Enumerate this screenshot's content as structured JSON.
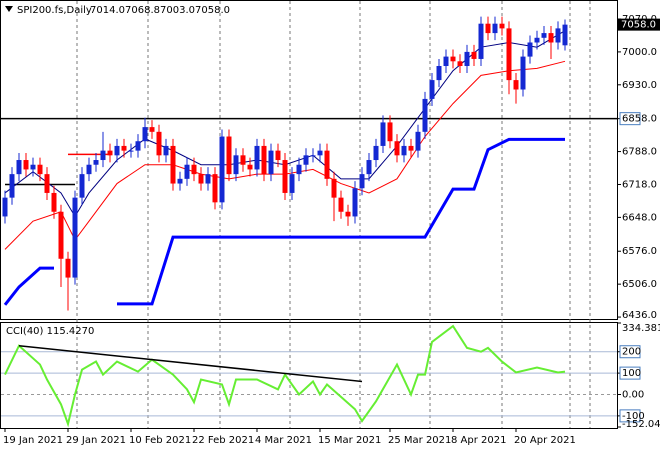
{
  "chart_data": [
    {
      "type": "candlestick",
      "header": {
        "symbol": "SPI200.fs,Daily",
        "open": "7014.0",
        "high": "7068.8",
        "low": "7003.0",
        "close": "7058.0"
      },
      "categories": [
        "19 Jan 2021",
        null,
        null,
        null,
        null,
        null,
        null,
        null,
        null,
        "29 Jan 2021",
        null,
        null,
        null,
        null,
        null,
        null,
        null,
        null,
        "10 Feb 2021",
        null,
        null,
        null,
        null,
        null,
        null,
        null,
        null,
        "22 Feb 2021",
        null,
        null,
        null,
        null,
        null,
        null,
        null,
        null,
        "4 Mar 2021",
        null,
        null,
        null,
        null,
        null,
        null,
        null,
        null,
        "15 Mar 2021",
        null,
        null,
        null,
        null,
        null,
        null,
        null,
        null,
        null,
        "25 Mar 2021",
        null,
        null,
        null,
        null,
        null,
        null,
        null,
        null,
        "8 Apr 2021",
        null,
        null,
        null,
        null,
        null,
        null,
        null,
        null,
        "20 Apr 2021",
        null,
        null,
        null,
        null,
        null,
        null,
        null
      ],
      "open": [
        6650,
        6690,
        6740,
        6770,
        6750,
        6760,
        6740,
        6700,
        6660,
        6560,
        6520,
        6690,
        6740,
        6760,
        6770,
        6790,
        6780,
        6800,
        6790,
        6790,
        6810,
        6840,
        6830,
        6780,
        6800,
        6720,
        6730,
        6760,
        6740,
        6720,
        6740,
        6680,
        6820,
        6740,
        6780,
        6760,
        6750,
        6800,
        6740,
        6790,
        6770,
        6700,
        6740,
        6760,
        6780,
        6780,
        6790,
        6730,
        6690,
        6660,
        6650,
        6710,
        6740,
        6770,
        6800,
        6850,
        6810,
        6780,
        6800,
        6790,
        6830,
        6900,
        6940,
        6970,
        6990,
        6980,
        6970,
        7000,
        6985,
        7060,
        7040,
        7060,
        7050,
        6940,
        6920,
        6990,
        7020,
        7030,
        7040,
        7020,
        7014
      ],
      "high": [
        6705,
        6755,
        6785,
        6785,
        6775,
        6775,
        6755,
        6715,
        6675,
        6575,
        6705,
        6755,
        6775,
        6785,
        6830,
        6805,
        6815,
        6815,
        6805,
        6825,
        6860,
        6855,
        6845,
        6815,
        6815,
        6745,
        6775,
        6775,
        6755,
        6755,
        6755,
        6835,
        6835,
        6795,
        6795,
        6775,
        6815,
        6815,
        6805,
        6805,
        6785,
        6755,
        6775,
        6795,
        6795,
        6805,
        6805,
        6745,
        6705,
        6675,
        6725,
        6755,
        6785,
        6815,
        6865,
        6865,
        6825,
        6815,
        6815,
        6845,
        6915,
        6955,
        6985,
        7005,
        7005,
        6995,
        7015,
        7015,
        7075,
        7075,
        7075,
        7075,
        7065,
        6955,
        7005,
        7035,
        7045,
        7055,
        7055,
        7065,
        7068.8
      ],
      "low": [
        6635,
        6675,
        6725,
        6735,
        6735,
        6725,
        6685,
        6645,
        6500,
        6450,
        6505,
        6675,
        6725,
        6745,
        6755,
        6765,
        6765,
        6775,
        6775,
        6775,
        6795,
        6815,
        6765,
        6765,
        6705,
        6705,
        6715,
        6725,
        6705,
        6705,
        6665,
        6665,
        6725,
        6725,
        6745,
        6735,
        6735,
        6725,
        6725,
        6755,
        6685,
        6685,
        6725,
        6745,
        6765,
        6765,
        6715,
        6640,
        6645,
        6630,
        6635,
        6695,
        6725,
        6755,
        6785,
        6795,
        6765,
        6765,
        6775,
        6775,
        6815,
        6885,
        6925,
        6955,
        6965,
        6955,
        6955,
        6970,
        6970,
        7025,
        7025,
        7035,
        6910,
        6890,
        6905,
        6975,
        7005,
        7015,
        6985,
        7005,
        7003
      ],
      "close": [
        6690,
        6740,
        6770,
        6750,
        6760,
        6740,
        6700,
        6660,
        6560,
        6520,
        6690,
        6740,
        6760,
        6770,
        6790,
        6780,
        6800,
        6790,
        6790,
        6810,
        6840,
        6830,
        6780,
        6800,
        6720,
        6730,
        6760,
        6740,
        6720,
        6740,
        6680,
        6820,
        6740,
        6780,
        6760,
        6750,
        6800,
        6740,
        6790,
        6770,
        6700,
        6740,
        6760,
        6780,
        6780,
        6790,
        6730,
        6690,
        6660,
        6650,
        6710,
        6740,
        6770,
        6800,
        6850,
        6810,
        6780,
        6800,
        6790,
        6830,
        6900,
        6940,
        6970,
        6990,
        6980,
        6970,
        7000,
        6985,
        7060,
        7040,
        7060,
        7050,
        6940,
        6920,
        6990,
        7020,
        7030,
        7040,
        7020,
        7050,
        7058
      ],
      "up_color": "#1428d2",
      "down_color": "#ff0000",
      "series": [
        {
          "color": "#000080",
          "width": 1,
          "x": [
            0,
            4,
            8,
            10,
            12,
            16,
            20,
            24,
            28,
            32,
            36,
            40,
            44,
            48,
            52,
            56,
            60,
            64,
            68,
            72,
            76,
            80
          ],
          "values": [
            6700,
            6745,
            6700,
            6650,
            6700,
            6770,
            6815,
            6790,
            6760,
            6760,
            6770,
            6760,
            6780,
            6730,
            6730,
            6800,
            6880,
            6960,
            7010,
            7020,
            7010,
            7045
          ]
        },
        {
          "color": "#ff0000",
          "width": 1,
          "x": [
            0,
            4,
            8,
            10,
            12,
            16,
            20,
            24,
            28,
            32,
            36,
            40,
            44,
            48,
            52,
            56,
            60,
            64,
            68,
            72,
            76,
            80
          ],
          "values": [
            6580,
            6640,
            6660,
            6600,
            6640,
            6720,
            6760,
            6760,
            6740,
            6730,
            6740,
            6740,
            6750,
            6720,
            6700,
            6730,
            6820,
            6890,
            6950,
            6960,
            6965,
            6980
          ]
        },
        {
          "color": "#0000ff",
          "width": 3,
          "x": [
            0,
            2,
            5,
            7,
            8,
            16,
            21,
            24,
            60,
            64,
            67,
            69,
            72,
            80
          ],
          "values": [
            6462,
            6500,
            6540,
            6540,
            null,
            6464,
            6464,
            6606,
            6606,
            6708,
            6708,
            6792,
            6814,
            6814
          ]
        }
      ],
      "levels": [
        {
          "value": 6858,
          "color": "#000000"
        }
      ],
      "segments": [
        {
          "x": [
            0,
            10
          ],
          "values": [
            6718,
            6718
          ],
          "color": "#000000"
        },
        {
          "x": [
            9,
            15
          ],
          "values": [
            6782,
            6782
          ],
          "color": "#ff0000"
        }
      ],
      "last_price": {
        "value": 7058,
        "label": "7058.0"
      },
      "ylim": [
        6434,
        7104
      ],
      "yticks": [
        {
          "value": 7070,
          "label": "7070.0"
        },
        {
          "value": 7000,
          "label": "7000.0"
        },
        {
          "value": 6930,
          "label": "6930.0"
        },
        {
          "value": 6858,
          "label": "6858.0"
        },
        {
          "value": 6788,
          "label": "6788.0"
        },
        {
          "value": 6718,
          "label": "6718.0"
        },
        {
          "value": 6648,
          "label": "6648.0"
        },
        {
          "value": 6576,
          "label": "6576.0"
        },
        {
          "value": 6506,
          "label": "6506.0"
        },
        {
          "value": 6436,
          "label": "6436.0"
        }
      ]
    },
    {
      "type": "line",
      "title": "CCI(40) 115.4270",
      "series": [
        {
          "color": "#66ee33",
          "width": 2,
          "x": [
            0,
            2,
            5,
            6,
            8,
            9,
            10,
            11,
            13,
            14,
            16,
            19,
            21,
            24,
            26,
            27,
            28,
            31,
            32,
            33,
            36,
            39,
            40,
            42,
            44,
            45,
            46,
            50,
            51,
            53,
            56,
            58,
            59,
            60,
            61,
            64,
            66,
            68,
            69,
            71,
            73,
            76,
            79,
            80
          ],
          "values": [
            93,
            228,
            140,
            70,
            -46,
            -138,
            0,
            116,
            154,
            93,
            154,
            107,
            163,
            93,
            24,
            -36,
            70,
            47,
            -46,
            70,
            70,
            24,
            93,
            0,
            61,
            0,
            47,
            -69,
            -124,
            -32,
            140,
            0,
            93,
            93,
            246,
            320,
            218,
            200,
            218,
            154,
            103,
            126,
            103,
            107
          ]
        },
        {
          "color": "#000000",
          "width": 1.5,
          "x": [
            2,
            51
          ],
          "values": [
            228,
            61
          ]
        }
      ],
      "levels": [
        200,
        100,
        -100
      ],
      "ylim": [
        -152.042,
        334.3816
      ],
      "yticks": [
        334.3816,
        200,
        100,
        {
          "value": 0,
          "label": "0.00"
        },
        -100,
        -152.042
      ]
    }
  ]
}
